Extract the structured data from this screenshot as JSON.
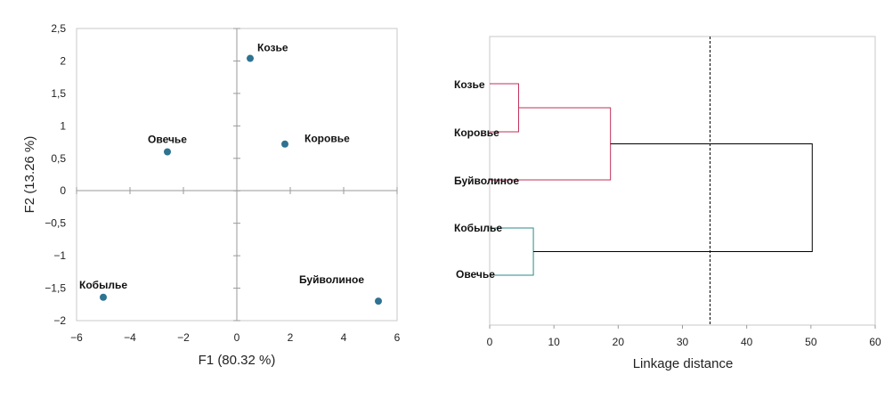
{
  "chart_data": [
    {
      "type": "scatter",
      "xlabel": "F1 (80.32 %)",
      "ylabel": "F2 (13.26 %)",
      "xlim": [
        -6,
        6
      ],
      "ylim": [
        -2,
        2.5
      ],
      "xticks": [
        "−6",
        "−4",
        "−2",
        "0",
        "2",
        "4",
        "6"
      ],
      "yticks": [
        "2,5",
        "2",
        "1,5",
        "1",
        "0,5",
        "0",
        "−0,5",
        "−1",
        "−1,5",
        "−2"
      ],
      "marker_color": "#2E7391",
      "points": [
        {
          "label": "Козье",
          "x": 0.5,
          "y": 2.04
        },
        {
          "label": "Коровье",
          "x": 1.8,
          "y": 0.72
        },
        {
          "label": "Овечье",
          "x": -2.6,
          "y": 0.6
        },
        {
          "label": "Кобылье",
          "x": -5.0,
          "y": -1.64
        },
        {
          "label": "Буйволиное",
          "x": 5.3,
          "y": -1.7
        }
      ]
    },
    {
      "type": "dendrogram",
      "xlabel": "Linkage distance",
      "xlim": [
        0,
        60
      ],
      "xticks": [
        "0",
        "10",
        "20",
        "30",
        "40",
        "50",
        "60"
      ],
      "cutoff": 34.3,
      "leaves": [
        "Козье",
        "Коровье",
        "Буйволиное",
        "Кобылье",
        "Овечье"
      ],
      "colors": {
        "cluster1": "#C0305A",
        "cluster2": "#2E8A8A",
        "root": "#000000"
      },
      "merges": [
        {
          "a": "Козье",
          "b": "Коровье",
          "distance": 4.5,
          "cluster": "cluster1"
        },
        {
          "a": "Козье+Коровье",
          "b": "Буйволиное",
          "distance": 18.8,
          "cluster": "cluster1"
        },
        {
          "a": "Кобылье",
          "b": "Овечье",
          "distance": 6.8,
          "cluster": "cluster2"
        },
        {
          "a": "cluster1",
          "b": "cluster2",
          "distance": 50.2,
          "cluster": "root"
        }
      ]
    }
  ]
}
